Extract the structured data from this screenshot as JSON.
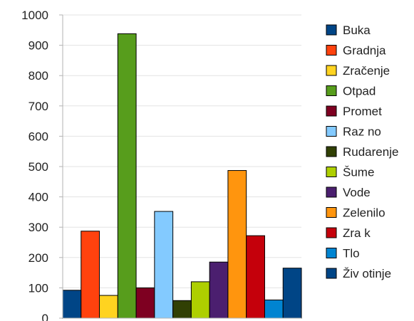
{
  "chart_data": {
    "type": "bar",
    "categories": [
      "Buka",
      "Gradnja",
      "Zračenje",
      "Otpad",
      "Promet",
      "Raz no",
      "Rudarenje",
      "Šume",
      "Vode",
      "Zelenilo",
      "Zra k",
      "Tlo",
      "Živ otinje"
    ],
    "values": [
      92,
      287,
      75,
      938,
      100,
      352,
      58,
      120,
      185,
      487,
      272,
      60,
      165
    ],
    "colors": [
      "#004586",
      "#ff420e",
      "#ffd320",
      "#579d1c",
      "#7e0021",
      "#83caff",
      "#314004",
      "#aecf00",
      "#4b1f6f",
      "#ff950e",
      "#c5000b",
      "#0084d1",
      "#004586"
    ],
    "ylim": [
      0,
      1000
    ],
    "yticks": [
      "0",
      "100",
      "200",
      "300",
      "400",
      "500",
      "600",
      "700",
      "800",
      "900",
      "1000"
    ],
    "grid": true,
    "legend_position": "right",
    "title": "",
    "xlabel": "",
    "ylabel": ""
  }
}
